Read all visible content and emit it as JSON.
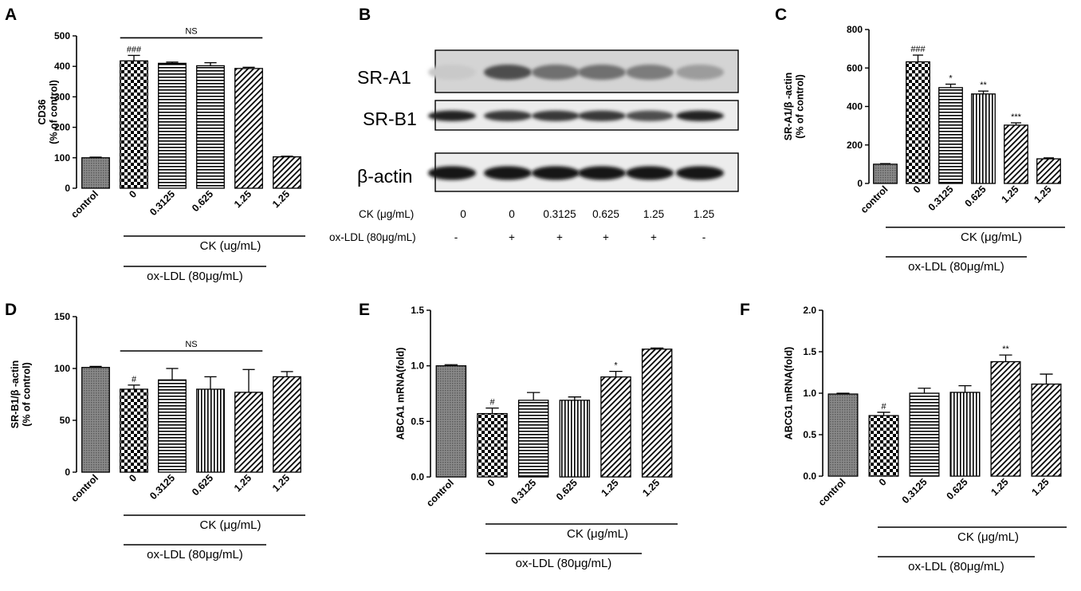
{
  "colors": {
    "ink": "#000000",
    "control_fill": "#7a7a7a",
    "background": "#ffffff"
  },
  "chart_data": [
    {
      "panel": "A",
      "type": "bar",
      "ylabel": "CD36\n(% of control)",
      "ylim": [
        0,
        500
      ],
      "yticks": [
        0,
        100,
        200,
        300,
        400,
        500
      ],
      "categories": [
        "control",
        "0",
        "0.3125",
        "0.625",
        "1.25",
        "1.25"
      ],
      "values": [
        100,
        418,
        410,
        402,
        393,
        103
      ],
      "errors": [
        2,
        18,
        4,
        10,
        4,
        2
      ],
      "patterns": [
        "control",
        "checker",
        "hlines",
        "hlines",
        "diag",
        "diag"
      ],
      "annotations": [
        "",
        "###",
        "",
        "",
        "",
        ""
      ],
      "bracket": {
        "label": "NS",
        "from": 1,
        "to": 4
      },
      "group_lines": [
        {
          "label": "CK (ug/mL)",
          "from": 1,
          "to": 5
        },
        {
          "label": "ox-LDL (80μg/mL)",
          "from": 1,
          "to": 4
        }
      ]
    },
    {
      "panel": "C",
      "type": "bar",
      "ylabel": "SR-A1/β -actin\n(% of control)",
      "ylim": [
        0,
        800
      ],
      "yticks": [
        0,
        200,
        400,
        600,
        800
      ],
      "categories": [
        "control",
        "0",
        "0.3125",
        "0.625",
        "1.25",
        "1.25"
      ],
      "values": [
        100,
        632,
        498,
        465,
        303,
        128
      ],
      "errors": [
        3,
        35,
        18,
        15,
        12,
        5
      ],
      "patterns": [
        "control",
        "checker",
        "hlines",
        "vlines",
        "diag",
        "diag"
      ],
      "annotations": [
        "",
        "###",
        "*",
        "**",
        "***",
        ""
      ],
      "group_lines": [
        {
          "label": "CK (μg/mL)",
          "from": 1,
          "to": 5
        },
        {
          "label": "ox-LDL (80μg/mL)",
          "from": 1,
          "to": 4
        }
      ]
    },
    {
      "panel": "D",
      "type": "bar",
      "ylabel": "SR-B1/β -actin\n(% of control)",
      "ylim": [
        0,
        150
      ],
      "yticks": [
        0,
        50,
        100,
        150
      ],
      "categories": [
        "control",
        "0",
        "0.3125",
        "0.625",
        "1.25",
        "1.25"
      ],
      "values": [
        101,
        80,
        89,
        80,
        77,
        92
      ],
      "errors": [
        1,
        4,
        11,
        12,
        22,
        5
      ],
      "patterns": [
        "control",
        "checker",
        "hlines",
        "vlines",
        "diag",
        "diag"
      ],
      "annotations": [
        "",
        "#",
        "",
        "",
        "",
        ""
      ],
      "bracket": {
        "label": "NS",
        "from": 1,
        "to": 4
      },
      "group_lines": [
        {
          "label": "CK (μg/mL)",
          "from": 1,
          "to": 5
        },
        {
          "label": "ox-LDL (80μg/mL)",
          "from": 1,
          "to": 4
        }
      ]
    },
    {
      "panel": "E",
      "type": "bar",
      "ylabel": "ABCA1 mRNA(fold)",
      "ylim": [
        0,
        1.5
      ],
      "yticks": [
        "0.0",
        "0.5",
        "1.0",
        "1.5"
      ],
      "categories": [
        "control",
        "0",
        "0.3125",
        "0.625",
        "1.25",
        "1.25"
      ],
      "values": [
        1.0,
        0.57,
        0.69,
        0.69,
        0.9,
        1.15
      ],
      "errors": [
        0.01,
        0.05,
        0.07,
        0.03,
        0.05,
        0.01
      ],
      "patterns": [
        "control",
        "checker",
        "hlines",
        "vlines",
        "diag",
        "diag"
      ],
      "annotations": [
        "",
        "#",
        "",
        "",
        "*",
        ""
      ],
      "group_lines": [
        {
          "label": "CK (μg/mL)",
          "from": 1,
          "to": 5
        },
        {
          "label": "ox-LDL (80μg/mL)",
          "from": 1,
          "to": 4
        }
      ]
    },
    {
      "panel": "F",
      "type": "bar",
      "ylabel": "ABCG1 mRNA(fold)",
      "ylim": [
        0,
        2.0
      ],
      "yticks": [
        "0.0",
        "0.5",
        "1.0",
        "1.5",
        "2.0"
      ],
      "categories": [
        "control",
        "0",
        "0.3125",
        "0.625",
        "1.25",
        "1.25"
      ],
      "values": [
        0.99,
        0.73,
        1.0,
        1.01,
        1.38,
        1.11
      ],
      "errors": [
        0.01,
        0.04,
        0.06,
        0.08,
        0.08,
        0.12
      ],
      "patterns": [
        "control",
        "checker",
        "hlines",
        "vlines",
        "diag",
        "diag"
      ],
      "annotations": [
        "",
        "#",
        "",
        "",
        "**",
        ""
      ],
      "group_lines": [
        {
          "label": "CK (μg/mL)",
          "from": 1,
          "to": 5
        },
        {
          "label": "ox-LDL (80μg/mL)",
          "from": 1,
          "to": 4
        }
      ]
    }
  ],
  "western_blot": {
    "panel": "B",
    "rows": [
      {
        "label": "SR-A1",
        "intensities": [
          0.15,
          0.7,
          0.55,
          0.55,
          0.5,
          0.35
        ]
      },
      {
        "label": "SR-B1",
        "intensities": [
          0.9,
          0.8,
          0.8,
          0.8,
          0.7,
          0.9
        ]
      },
      {
        "label": "β-actin",
        "intensities": [
          0.95,
          0.95,
          0.95,
          0.95,
          0.95,
          0.95
        ]
      }
    ],
    "ck_label": "CK (μg/mL)",
    "ck_values": [
      "0",
      "0",
      "0.3125",
      "0.625",
      "1.25",
      "1.25"
    ],
    "oxldl_label": "ox-LDL (80μg/mL)",
    "oxldl_values": [
      "-",
      "+",
      "+",
      "+",
      "+",
      "-"
    ]
  }
}
